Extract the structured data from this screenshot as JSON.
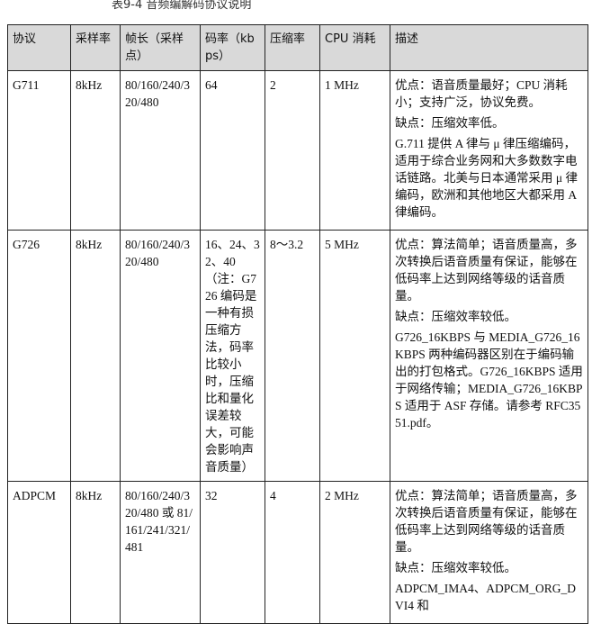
{
  "caption": "表9-4 音频编解码协议说明",
  "headers": [
    "协议",
    "采样率",
    "帧长（采样点）",
    "码率（kbps）",
    "压缩率",
    "CPU 消耗",
    "描述"
  ],
  "rows": [
    {
      "protocol": "G711",
      "rate": "8kHz",
      "frame": "80/160/240/320/480",
      "bitrate": "64",
      "compression": "2",
      "cpu": "1 MHz",
      "desc": [
        "优点：语音质量最好；CPU 消耗小；支持广泛，协议免费。",
        "缺点：压缩效率低。",
        "G.711 提供 A 律与 μ 律压缩编码，适用于综合业务网和大多数数字电话链路。北美与日本通常采用 μ 律编码，欧洲和其他地区大都采用 A 律编码。"
      ]
    },
    {
      "protocol": "G726",
      "rate": "8kHz",
      "frame": "80/160/240/320/480",
      "bitrate": "16、24、32、40（注：G726 编码是一种有损压缩方法，码率比较小时，压缩比和量化误差较大，可能会影响声音质量）",
      "compression": "8～3.2",
      "cpu": "5 MHz",
      "desc": [
        "优点：算法简单；语音质量高，多次转换后语音质量有保证，能够在低码率上达到网络等级的话音质量。",
        "缺点：压缩效率较低。",
        "G726_16KBPS 与 MEDIA_G726_16KBPS 两种编码器区别在于编码输出的打包格式。G726_16KBPS 适用于网络传输；MEDIA_G726_16KBPS 适用于 ASF 存储。请参考 RFC3551.pdf。"
      ]
    },
    {
      "protocol": "ADPCM",
      "rate": "8kHz",
      "frame": "80/160/240/320/480 或 81/161/241/321/481",
      "bitrate": "32",
      "compression": "4",
      "cpu": "2 MHz",
      "desc": [
        "优点：算法简单；语音质量高，多次转换后语音质量有保证，能够在低码率上达到网络等级的话音质量。",
        "缺点：压缩效率较低。",
        "ADPCM_IMA4、ADPCM_ORG_DVI4 和"
      ]
    }
  ]
}
